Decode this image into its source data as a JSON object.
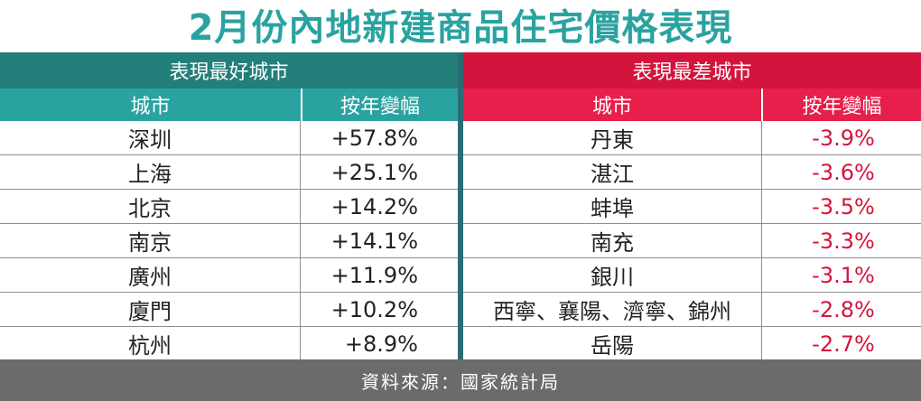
{
  "title": "2月份內地新建商品住宅價格表現",
  "best": {
    "band": "表現最好城市",
    "col_city": "城市",
    "col_change": "按年變幅",
    "rows": [
      {
        "city": "深圳",
        "change": "+57.8%"
      },
      {
        "city": "上海",
        "change": "+25.1%"
      },
      {
        "city": "北京",
        "change": "+14.2%"
      },
      {
        "city": "南京",
        "change": "+14.1%"
      },
      {
        "city": "廣州",
        "change": "+11.9%"
      },
      {
        "city": "廈門",
        "change": "+10.2%"
      },
      {
        "city": "杭州",
        "change": "+8.9%"
      }
    ]
  },
  "worst": {
    "band": "表現最差城市",
    "col_city": "城市",
    "col_change": "按年變幅",
    "rows": [
      {
        "city": "丹東",
        "change": "-3.9%"
      },
      {
        "city": "湛江",
        "change": "-3.6%"
      },
      {
        "city": "蚌埠",
        "change": "-3.5%"
      },
      {
        "city": "南充",
        "change": "-3.3%"
      },
      {
        "city": "銀川",
        "change": "-3.1%"
      },
      {
        "city": "西寧、襄陽、濟寧、錦州",
        "change": "-2.8%"
      },
      {
        "city": "岳陽",
        "change": "-2.7%"
      }
    ]
  },
  "source": "資料來源：國家統計局",
  "colors": {
    "title_teal": "#2aa3a0",
    "best_dark": "#237f79",
    "worst_red": "#d3153d",
    "footer_gray": "#6b6b6b"
  }
}
